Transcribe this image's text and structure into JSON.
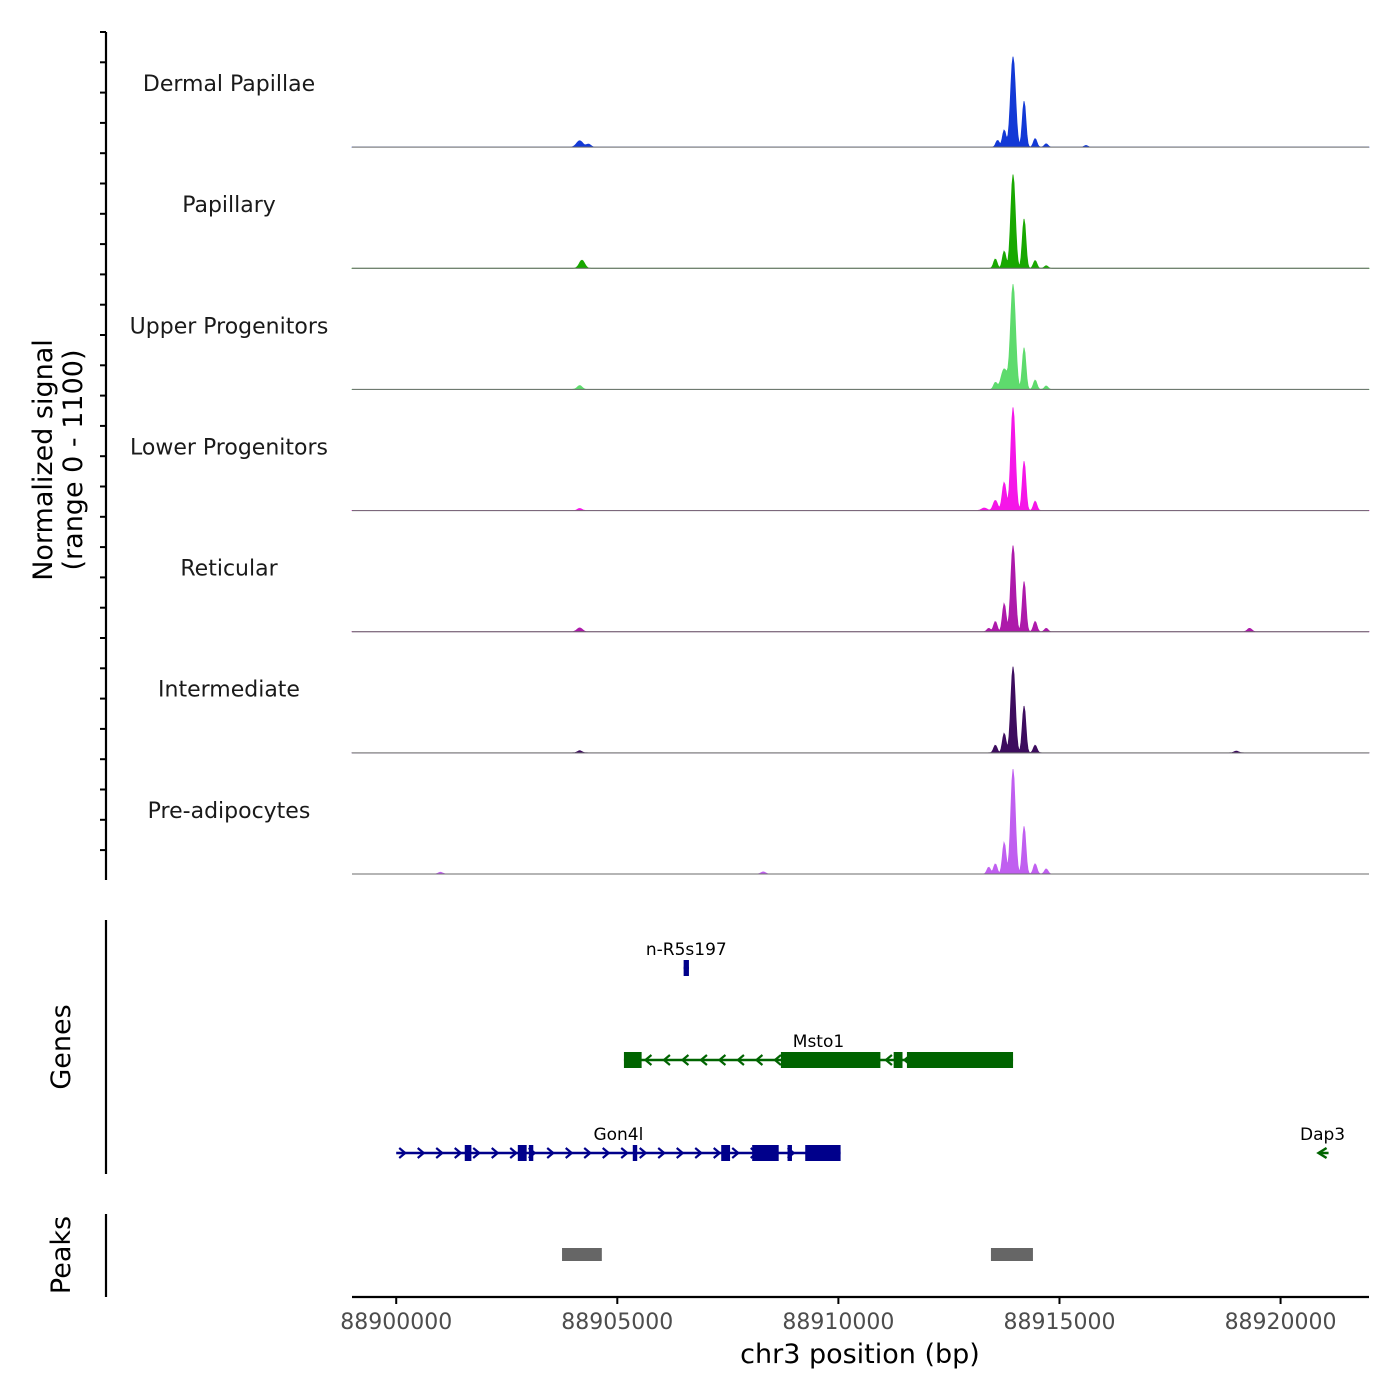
{
  "chart_data": {
    "type": "area",
    "title": "",
    "xlabel": "chr3 position (bp)",
    "ylabel": "Normalized signal",
    "ylabel_range": "(range 0 - 1100)",
    "xlim": [
      88899000,
      88922000
    ],
    "ylim": [
      0,
      1100
    ],
    "x_ticks": [
      88900000,
      88905000,
      88910000,
      88915000,
      88920000
    ],
    "x_tick_labels": [
      "88900000",
      "88905000",
      "88910000",
      "88915000",
      "88920000"
    ],
    "tracks": [
      {
        "name": "Dermal Papillae",
        "color": "#1339d6",
        "peaks": [
          [
            88904150,
            75,
            70
          ],
          [
            88904350,
            35,
            50
          ],
          [
            88913600,
            80,
            40
          ],
          [
            88913750,
            200,
            40
          ],
          [
            88913950,
            1060,
            55
          ],
          [
            88914200,
            540,
            40
          ],
          [
            88914450,
            100,
            40
          ],
          [
            88914700,
            40,
            40
          ],
          [
            88915600,
            20,
            40
          ]
        ]
      },
      {
        "name": "Papillary",
        "color": "#18a800",
        "peaks": [
          [
            88904200,
            95,
            60
          ],
          [
            88913550,
            110,
            40
          ],
          [
            88913750,
            200,
            40
          ],
          [
            88913950,
            1100,
            50
          ],
          [
            88914200,
            580,
            40
          ],
          [
            88914450,
            90,
            40
          ],
          [
            88914700,
            30,
            40
          ]
        ]
      },
      {
        "name": "Upper Progenitors",
        "color": "#5edb6d",
        "peaks": [
          [
            88904150,
            45,
            55
          ],
          [
            88913550,
            80,
            40
          ],
          [
            88913750,
            240,
            70
          ],
          [
            88913950,
            1230,
            55
          ],
          [
            88914200,
            490,
            40
          ],
          [
            88914450,
            110,
            40
          ],
          [
            88914700,
            40,
            40
          ]
        ]
      },
      {
        "name": "Lower Progenitors",
        "color": "#f516e8",
        "peaks": [
          [
            88904150,
            25,
            50
          ],
          [
            88913300,
            30,
            60
          ],
          [
            88913550,
            120,
            50
          ],
          [
            88913750,
            330,
            45
          ],
          [
            88913950,
            1210,
            50
          ],
          [
            88914200,
            580,
            40
          ],
          [
            88914450,
            110,
            40
          ]
        ]
      },
      {
        "name": "Reticular",
        "color": "#ad1aaa",
        "peaks": [
          [
            88904150,
            45,
            60
          ],
          [
            88913400,
            40,
            40
          ],
          [
            88913550,
            120,
            40
          ],
          [
            88913750,
            330,
            40
          ],
          [
            88913950,
            1010,
            50
          ],
          [
            88914200,
            590,
            40
          ],
          [
            88914450,
            120,
            40
          ],
          [
            88914700,
            40,
            40
          ],
          [
            88919300,
            40,
            50
          ]
        ]
      },
      {
        "name": "Intermediate",
        "color": "#3d0c5e",
        "peaks": [
          [
            88904150,
            25,
            50
          ],
          [
            88913550,
            90,
            40
          ],
          [
            88913750,
            230,
            40
          ],
          [
            88913950,
            1010,
            50
          ],
          [
            88914200,
            550,
            40
          ],
          [
            88914450,
            90,
            40
          ],
          [
            88919000,
            20,
            50
          ]
        ]
      },
      {
        "name": "Pre-adipocytes",
        "color": "#c05ff0",
        "peaks": [
          [
            88901000,
            20,
            50
          ],
          [
            88908300,
            25,
            50
          ],
          [
            88913400,
            80,
            40
          ],
          [
            88913550,
            120,
            40
          ],
          [
            88913750,
            370,
            40
          ],
          [
            88913950,
            1230,
            50
          ],
          [
            88914200,
            560,
            40
          ],
          [
            88914450,
            120,
            40
          ],
          [
            88914700,
            60,
            40
          ]
        ]
      }
    ],
    "genes_track": {
      "title": "Genes",
      "genes": [
        {
          "name": "n-R5s197",
          "strand": "+",
          "start": 88906500,
          "end": 88906620,
          "row": 0,
          "color": "#00008b",
          "exons": [
            [
              88906500,
              88906620
            ]
          ],
          "thick": [
            [
              88906500,
              88906620
            ]
          ]
        },
        {
          "name": "Msto1",
          "strand": "-",
          "start": 88905150,
          "end": 88913950,
          "row": 1,
          "color": "#006400",
          "exons": [
            [
              88905150,
              88905550
            ],
            [
              88908700,
              88910950
            ],
            [
              88911250,
              88911450
            ],
            [
              88911550,
              88913950
            ]
          ],
          "thick": [
            [
              88905150,
              88905550
            ],
            [
              88908700,
              88910950
            ],
            [
              88911250,
              88911450
            ],
            [
              88911550,
              88913950
            ]
          ]
        },
        {
          "name": "Gon4l",
          "strand": "+",
          "start": 88900000,
          "end": 88910050,
          "row": 2,
          "color": "#00008b",
          "exons": [
            [
              88901550,
              88901700
            ],
            [
              88902750,
              88902950
            ],
            [
              88903000,
              88903100
            ],
            [
              88905350,
              88905450
            ],
            [
              88907350,
              88907550
            ],
            [
              88908050,
              88908650
            ],
            [
              88908850,
              88908950
            ],
            [
              88909250,
              88910050
            ]
          ],
          "thick": [
            [
              88901550,
              88901700
            ],
            [
              88902750,
              88902950
            ],
            [
              88903000,
              88903100
            ],
            [
              88905350,
              88905450
            ],
            [
              88907350,
              88907550
            ],
            [
              88908050,
              88908650
            ],
            [
              88909250,
              88910050
            ]
          ]
        },
        {
          "name": "Dap3",
          "strand": "-",
          "start": 88920850,
          "end": 88921050,
          "row": 2,
          "color": "#006400",
          "exons": [],
          "thick": []
        }
      ]
    },
    "peaks_track": {
      "title": "Peaks",
      "color": "#666666",
      "regions": [
        [
          88903750,
          88904650
        ],
        [
          88913450,
          88914400
        ]
      ]
    }
  }
}
